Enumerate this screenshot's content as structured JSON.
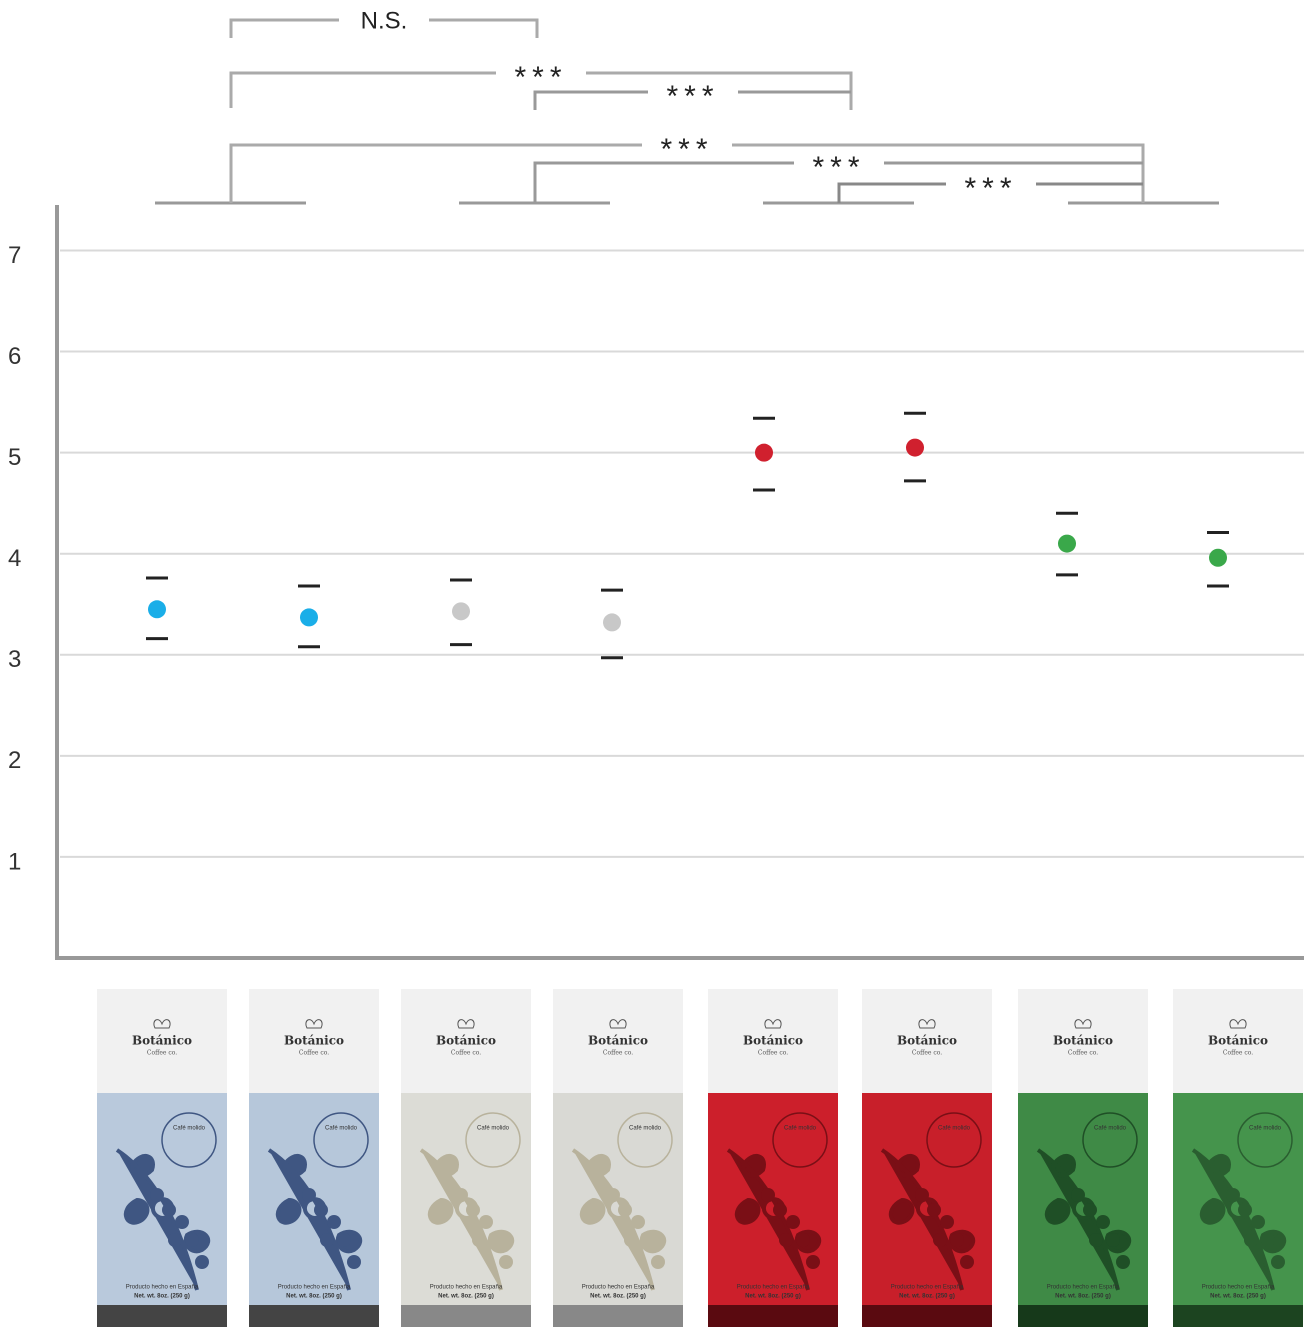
{
  "chart_data": {
    "type": "dot-errorbar",
    "values": [
      3.45,
      3.37,
      3.43,
      3.32,
      5.0,
      5.05,
      4.1,
      3.96
    ],
    "lower": [
      3.16,
      3.08,
      3.1,
      2.97,
      4.63,
      4.72,
      3.79,
      3.68
    ],
    "upper": [
      3.76,
      3.68,
      3.74,
      3.64,
      5.34,
      5.39,
      4.4,
      4.21
    ],
    "colors": [
      "#1aaee8",
      "#1aaee8",
      "#c8c8c8",
      "#c8c8c8",
      "#d0202e",
      "#d0202e",
      "#3aa84a",
      "#3aa84a"
    ],
    "ylim": [
      0,
      7.45
    ],
    "yticks": [
      1,
      2,
      3,
      4,
      5,
      6,
      7
    ],
    "grid": true,
    "annotations": [
      "N.S.",
      "***",
      "***",
      "***",
      "***",
      "***"
    ],
    "package": {
      "brand": "Botánico",
      "tagline": "Coffee co.",
      "badge": "Café molido",
      "origin": "Producto hecho en España",
      "weight": "Net. wt. 8oz. (250 g)"
    }
  }
}
